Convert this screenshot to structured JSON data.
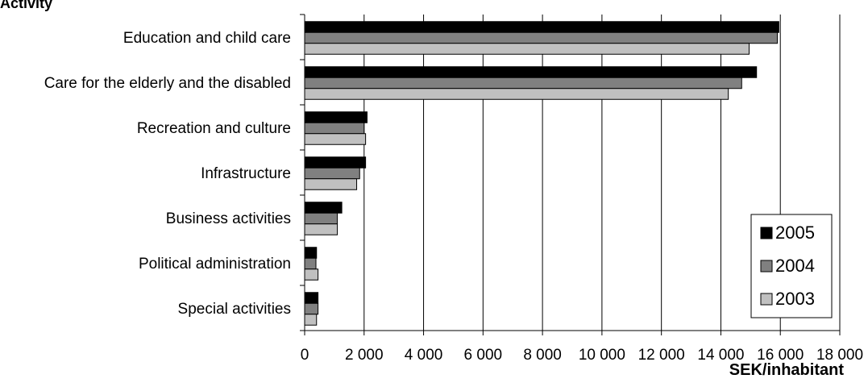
{
  "chart_data": {
    "type": "bar",
    "orientation": "horizontal",
    "ylabel": "Activity",
    "xlabel": "SEK/inhabitant",
    "categories": [
      "Education and child care",
      "Care for the elderly and the disabled",
      "Recreation and culture",
      "Infrastructure",
      "Business activities",
      "Political administration",
      "Special activities"
    ],
    "series": [
      {
        "name": "2005",
        "color": "#000000",
        "values": [
          15950,
          15200,
          2100,
          2050,
          1250,
          400,
          450
        ]
      },
      {
        "name": "2004",
        "color": "#808080",
        "values": [
          15900,
          14700,
          2000,
          1850,
          1100,
          380,
          450
        ]
      },
      {
        "name": "2003",
        "color": "#c0c0c0",
        "values": [
          14950,
          14250,
          2050,
          1750,
          1100,
          450,
          400
        ]
      }
    ],
    "xlim": [
      0,
      18000
    ],
    "xticks": [
      "0",
      "2 000",
      "4 000",
      "6 000",
      "8 000",
      "10 000",
      "12 000",
      "14 000",
      "16 000",
      "18 000"
    ],
    "grid": "vertical",
    "legend": "bottom-right"
  }
}
